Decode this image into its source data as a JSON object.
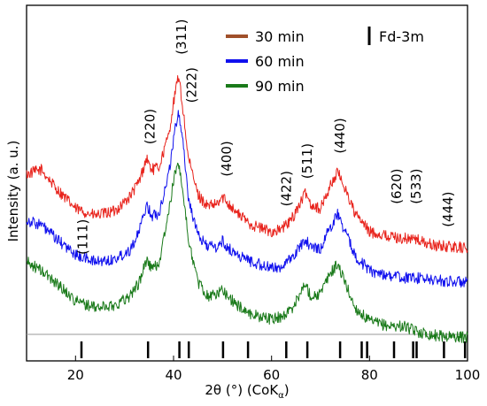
{
  "chart_data": {
    "type": "line",
    "title": "",
    "xlabel": "2θ (°) (CoK",
    "xlabel_sub": "α",
    "xlabel_end": ")",
    "ylabel": "Intensity (a. u.)",
    "xlim": [
      10,
      100
    ],
    "xticks": [
      20,
      40,
      60,
      80,
      100
    ],
    "xtick_labels": [
      "20",
      "40",
      "60",
      "80",
      "100"
    ],
    "grid": false,
    "legend_position": "top-right",
    "series": [
      {
        "name": "30 min",
        "color": "#e8231c",
        "legend_color": "#a0502a",
        "values": [
          [
            10,
            0.55
          ],
          [
            13,
            0.57
          ],
          [
            16,
            0.49
          ],
          [
            20,
            0.4
          ],
          [
            24,
            0.37
          ],
          [
            28,
            0.39
          ],
          [
            31,
            0.45
          ],
          [
            33,
            0.52
          ],
          [
            34.5,
            0.62
          ],
          [
            35.5,
            0.57
          ],
          [
            37,
            0.58
          ],
          [
            39,
            0.72
          ],
          [
            40,
            0.86
          ],
          [
            41,
            0.98
          ],
          [
            42,
            0.82
          ],
          [
            43,
            0.62
          ],
          [
            45,
            0.46
          ],
          [
            47,
            0.41
          ],
          [
            49,
            0.42
          ],
          [
            50,
            0.45
          ],
          [
            51,
            0.43
          ],
          [
            53,
            0.38
          ],
          [
            56,
            0.33
          ],
          [
            60,
            0.3
          ],
          [
            62,
            0.31
          ],
          [
            64,
            0.35
          ],
          [
            66,
            0.43
          ],
          [
            67,
            0.47
          ],
          [
            68,
            0.42
          ],
          [
            70,
            0.4
          ],
          [
            72,
            0.5
          ],
          [
            73.5,
            0.56
          ],
          [
            75,
            0.49
          ],
          [
            77,
            0.38
          ],
          [
            80,
            0.3
          ],
          [
            84,
            0.28
          ],
          [
            87,
            0.27
          ],
          [
            89,
            0.27
          ],
          [
            93,
            0.24
          ],
          [
            100,
            0.23
          ]
        ]
      },
      {
        "name": "60 min",
        "color": "#1010ee",
        "legend_color": "#1010ee",
        "values": [
          [
            10,
            0.35
          ],
          [
            13,
            0.33
          ],
          [
            16,
            0.27
          ],
          [
            20,
            0.2
          ],
          [
            24,
            0.17
          ],
          [
            28,
            0.18
          ],
          [
            31,
            0.22
          ],
          [
            33,
            0.3
          ],
          [
            34.5,
            0.42
          ],
          [
            35.5,
            0.37
          ],
          [
            37,
            0.38
          ],
          [
            39,
            0.55
          ],
          [
            40,
            0.7
          ],
          [
            41,
            0.83
          ],
          [
            42,
            0.68
          ],
          [
            43,
            0.45
          ],
          [
            45,
            0.28
          ],
          [
            47,
            0.24
          ],
          [
            49,
            0.23
          ],
          [
            50,
            0.26
          ],
          [
            51,
            0.23
          ],
          [
            53,
            0.2
          ],
          [
            56,
            0.17
          ],
          [
            60,
            0.14
          ],
          [
            62,
            0.15
          ],
          [
            64,
            0.18
          ],
          [
            66,
            0.24
          ],
          [
            67,
            0.27
          ],
          [
            68,
            0.23
          ],
          [
            70,
            0.23
          ],
          [
            72,
            0.32
          ],
          [
            73.5,
            0.38
          ],
          [
            75,
            0.3
          ],
          [
            77,
            0.2
          ],
          [
            80,
            0.13
          ],
          [
            84,
            0.11
          ],
          [
            87,
            0.1
          ],
          [
            89,
            0.1
          ],
          [
            93,
            0.09
          ],
          [
            100,
            0.08
          ]
        ]
      },
      {
        "name": "90 min",
        "color": "#1a7a1a",
        "legend_color": "#1a7a1a",
        "values": [
          [
            10,
            0.17
          ],
          [
            13,
            0.13
          ],
          [
            16,
            0.08
          ],
          [
            20,
            0.0
          ],
          [
            24,
            -0.03
          ],
          [
            28,
            -0.02
          ],
          [
            31,
            0.02
          ],
          [
            33,
            0.08
          ],
          [
            34.5,
            0.18
          ],
          [
            35.5,
            0.14
          ],
          [
            37,
            0.16
          ],
          [
            39,
            0.38
          ],
          [
            40,
            0.52
          ],
          [
            41,
            0.61
          ],
          [
            42,
            0.46
          ],
          [
            43,
            0.27
          ],
          [
            45,
            0.08
          ],
          [
            47,
            0.02
          ],
          [
            49,
            0.03
          ],
          [
            50,
            0.05
          ],
          [
            51,
            0.02
          ],
          [
            53,
            -0.02
          ],
          [
            56,
            -0.06
          ],
          [
            60,
            -0.08
          ],
          [
            62,
            -0.07
          ],
          [
            64,
            -0.04
          ],
          [
            66,
            0.04
          ],
          [
            67,
            0.07
          ],
          [
            68,
            0.02
          ],
          [
            70,
            0.03
          ],
          [
            72,
            0.12
          ],
          [
            73.5,
            0.16
          ],
          [
            75,
            0.08
          ],
          [
            77,
            -0.03
          ],
          [
            80,
            -0.09
          ],
          [
            84,
            -0.11
          ],
          [
            87,
            -0.11
          ],
          [
            89,
            -0.13
          ],
          [
            93,
            -0.15
          ],
          [
            100,
            -0.16
          ]
        ]
      }
    ],
    "peak_labels": [
      {
        "label": "(111)",
        "x": 21.5,
        "level": 0.2
      },
      {
        "label": "(220)",
        "x": 35.2,
        "level": 0.68
      },
      {
        "label": "(311)",
        "x": 41.6,
        "level": 1.07
      },
      {
        "label": "(222)",
        "x": 43.7,
        "level": 0.86
      },
      {
        "label": "(400)",
        "x": 50.8,
        "level": 0.54
      },
      {
        "label": "(422)",
        "x": 63.0,
        "level": 0.41
      },
      {
        "label": "(511)",
        "x": 67.3,
        "level": 0.53
      },
      {
        "label": "(440)",
        "x": 74.0,
        "level": 0.64
      },
      {
        "label": "(620)",
        "x": 85.5,
        "level": 0.42
      },
      {
        "label": "(533)",
        "x": 89.5,
        "level": 0.42
      },
      {
        "label": "(444)",
        "x": 96.0,
        "level": 0.32
      }
    ],
    "reference_label": "Fd-3m",
    "reference_ticks": [
      21.2,
      34.8,
      41.2,
      43.1,
      50.1,
      55.2,
      63.0,
      67.3,
      74.0,
      78.4,
      79.5,
      85.0,
      88.9,
      89.6,
      95.2,
      99.5
    ]
  }
}
